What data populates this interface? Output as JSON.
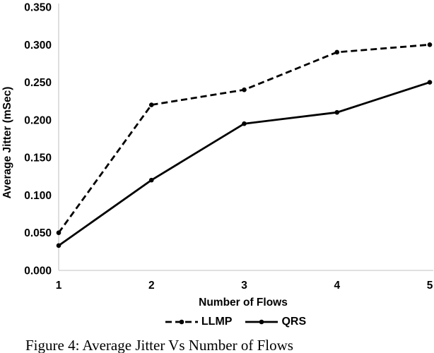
{
  "figure": {
    "caption": "Figure 4: Average Jitter Vs Number of Flows"
  },
  "chart_data": {
    "type": "line",
    "title": "",
    "xlabel": "Number of Flows",
    "ylabel": "Average Jitter (mSec)",
    "x": [
      1,
      2,
      3,
      4,
      5
    ],
    "xlim": [
      1,
      5
    ],
    "ylim": [
      0,
      0.35
    ],
    "ytick_step": 0.05,
    "ytick_labels": [
      "0.000",
      "0.050",
      "0.100",
      "0.150",
      "0.200",
      "0.250",
      "0.300",
      "0.350"
    ],
    "grid": false,
    "legend_position": "bottom",
    "axis_color": "#D6D6D6",
    "text_color": "#000000",
    "series": [
      {
        "name": "LLMP",
        "values": [
          0.05,
          0.22,
          0.24,
          0.29,
          0.3
        ],
        "color": "#000000",
        "line_style": "dashed",
        "dash": "9 5",
        "marker": "circle"
      },
      {
        "name": "QRS",
        "values": [
          0.033,
          0.12,
          0.195,
          0.21,
          0.25
        ],
        "color": "#000000",
        "line_style": "solid",
        "dash": "",
        "marker": "circle"
      }
    ]
  }
}
